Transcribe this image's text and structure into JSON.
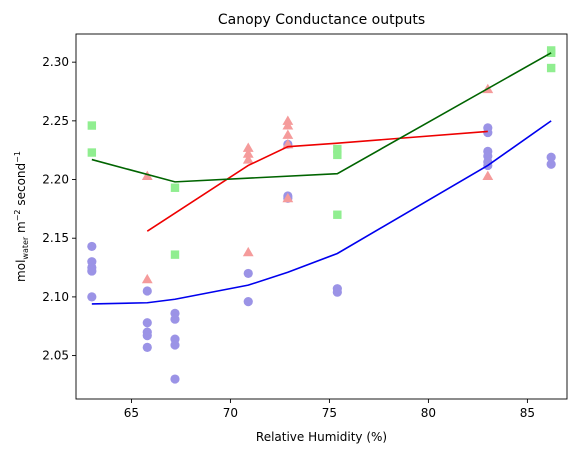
{
  "chart_data": {
    "type": "scatter",
    "title": "Canopy Conductance outputs",
    "xlabel": "Relative Humidity (%)",
    "ylabel": {
      "prefix": "mol",
      "subscript": "water",
      "middle": " m",
      "sup1": "−2",
      "middle2": " second",
      "sup2": "−1"
    },
    "xlim": [
      62.2,
      87.0
    ],
    "ylim": [
      2.013,
      2.324
    ],
    "xticks": [
      65,
      70,
      75,
      80,
      85
    ],
    "yticks": [
      2.05,
      2.1,
      2.15,
      2.2,
      2.25,
      2.3
    ],
    "ytick_labels": [
      "2.05",
      "2.10",
      "2.15",
      "2.20",
      "2.25",
      "2.30"
    ],
    "grid": false,
    "series": [
      {
        "marker": "circle",
        "color": "#9b93e6",
        "points": [
          [
            63.0,
            2.143
          ],
          [
            63.0,
            2.13
          ],
          [
            63.0,
            2.125
          ],
          [
            63.0,
            2.122
          ],
          [
            63.0,
            2.1
          ],
          [
            65.8,
            2.105
          ],
          [
            65.8,
            2.078
          ],
          [
            65.8,
            2.07
          ],
          [
            65.8,
            2.067
          ],
          [
            65.8,
            2.057
          ],
          [
            67.2,
            2.086
          ],
          [
            67.2,
            2.081
          ],
          [
            67.2,
            2.064
          ],
          [
            67.2,
            2.059
          ],
          [
            67.2,
            2.03
          ],
          [
            70.9,
            2.12
          ],
          [
            70.9,
            2.096
          ],
          [
            72.9,
            2.23
          ],
          [
            72.9,
            2.186
          ],
          [
            72.9,
            2.184
          ],
          [
            75.4,
            2.107
          ],
          [
            75.4,
            2.104
          ],
          [
            83.0,
            2.244
          ],
          [
            83.0,
            2.24
          ],
          [
            83.0,
            2.224
          ],
          [
            83.0,
            2.22
          ],
          [
            83.0,
            2.215
          ],
          [
            83.0,
            2.212
          ],
          [
            86.2,
            2.219
          ],
          [
            86.2,
            2.213
          ]
        ],
        "trend": {
          "color": "#0000ee",
          "x": [
            63.0,
            65.8,
            67.2,
            70.9,
            72.9,
            75.4,
            83.0,
            86.2
          ],
          "y": [
            2.094,
            2.095,
            2.098,
            2.11,
            2.121,
            2.137,
            2.212,
            2.25
          ]
        }
      },
      {
        "marker": "triangle",
        "color": "#f59b9b",
        "points": [
          [
            65.8,
            2.203
          ],
          [
            65.8,
            2.115
          ],
          [
            70.9,
            2.227
          ],
          [
            70.9,
            2.222
          ],
          [
            70.9,
            2.217
          ],
          [
            70.9,
            2.138
          ],
          [
            72.9,
            2.25
          ],
          [
            72.9,
            2.246
          ],
          [
            72.9,
            2.238
          ],
          [
            72.9,
            2.23
          ],
          [
            72.9,
            2.184
          ],
          [
            83.0,
            2.277
          ],
          [
            83.0,
            2.203
          ]
        ],
        "trend": {
          "color": "#ee0000",
          "x": [
            65.8,
            70.9,
            72.9,
            75.4,
            83.0
          ],
          "y": [
            2.156,
            2.212,
            2.228,
            2.231,
            2.241
          ]
        }
      },
      {
        "marker": "square",
        "color": "#90ee90",
        "points": [
          [
            63.0,
            2.246
          ],
          [
            63.0,
            2.223
          ],
          [
            67.2,
            2.193
          ],
          [
            67.2,
            2.136
          ],
          [
            75.4,
            2.226
          ],
          [
            75.4,
            2.221
          ],
          [
            75.4,
            2.17
          ],
          [
            86.2,
            2.31
          ],
          [
            86.2,
            2.308
          ],
          [
            86.2,
            2.295
          ]
        ],
        "trend": {
          "color": "#006400",
          "x": [
            63.0,
            67.2,
            75.4,
            86.2
          ],
          "y": [
            2.217,
            2.198,
            2.205,
            2.308
          ]
        }
      }
    ]
  }
}
